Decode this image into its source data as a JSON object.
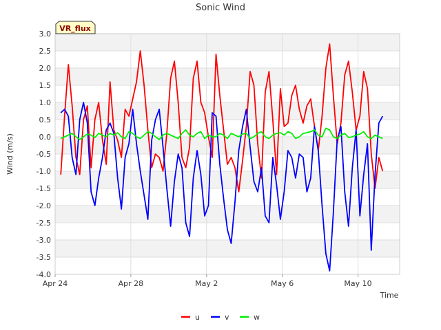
{
  "chart_data": {
    "type": "line",
    "title": "Sonic Wind",
    "xlabel": "Time",
    "ylabel": "Wind (m/s)",
    "badge": "VR_flux",
    "x_start": "Apr 24",
    "xlim_days": [
      0,
      18.2
    ],
    "ylim": [
      -4.0,
      3.0
    ],
    "y_ticks": [
      3.0,
      2.5,
      2.0,
      1.5,
      1.0,
      0.5,
      0.0,
      -0.5,
      -1.0,
      -1.5,
      -2.0,
      -2.5,
      -3.0,
      -3.5,
      -4.0
    ],
    "y_tick_labels": [
      "3.0",
      "2.5",
      "2.0",
      "1.5",
      "1.0",
      "0.5",
      "0.0",
      "-0.5",
      "-1.0",
      "-1.5",
      "-2.0",
      "-2.5",
      "-3.0",
      "-3.5",
      "-4.0"
    ],
    "x_ticks": [
      {
        "label": "Apr 24",
        "day": 0
      },
      {
        "label": "Apr 28",
        "day": 4
      },
      {
        "label": "May 2",
        "day": 8
      },
      {
        "label": "May 6",
        "day": 12
      },
      {
        "label": "May 10",
        "day": 16
      }
    ],
    "grid": true,
    "legend_position": "bottom-center",
    "series": [
      {
        "name": "u",
        "color": "#ff0000",
        "x": [
          0.3,
          0.5,
          0.7,
          0.9,
          1.1,
          1.3,
          1.5,
          1.7,
          1.9,
          2.1,
          2.3,
          2.5,
          2.7,
          2.9,
          3.1,
          3.3,
          3.5,
          3.7,
          3.9,
          4.1,
          4.3,
          4.5,
          4.7,
          4.9,
          5.1,
          5.3,
          5.5,
          5.7,
          5.9,
          6.1,
          6.3,
          6.5,
          6.7,
          6.9,
          7.1,
          7.3,
          7.5,
          7.7,
          7.9,
          8.1,
          8.3,
          8.5,
          8.7,
          8.9,
          9.1,
          9.3,
          9.5,
          9.7,
          9.9,
          10.1,
          10.3,
          10.5,
          10.7,
          10.9,
          11.1,
          11.3,
          11.5,
          11.7,
          11.9,
          12.1,
          12.3,
          12.5,
          12.7,
          12.9,
          13.1,
          13.3,
          13.5,
          13.7,
          13.9,
          14.1,
          14.3,
          14.5,
          14.7,
          14.9,
          15.1,
          15.3,
          15.5,
          15.7,
          15.9,
          16.1,
          16.3,
          16.5,
          16.7,
          16.9,
          17.1,
          17.3
        ],
        "y": [
          -1.1,
          0.6,
          2.1,
          0.9,
          -0.6,
          -1.1,
          0.5,
          0.9,
          -0.9,
          0.5,
          1.0,
          -0.1,
          -0.8,
          1.6,
          0.2,
          -0.1,
          -0.6,
          0.8,
          0.6,
          1.1,
          1.6,
          2.5,
          1.5,
          0.2,
          -0.9,
          -0.5,
          -0.6,
          -1.0,
          0.1,
          1.7,
          2.2,
          1.0,
          -0.6,
          -0.9,
          -0.3,
          1.7,
          2.2,
          1.0,
          0.7,
          0.0,
          -0.6,
          2.4,
          1.2,
          0.2,
          -0.8,
          -0.6,
          -0.9,
          -1.6,
          -0.7,
          0.3,
          1.9,
          1.5,
          -0.2,
          -1.2,
          1.3,
          1.9,
          0.5,
          -1.1,
          1.4,
          0.3,
          0.4,
          1.2,
          1.5,
          0.8,
          0.4,
          0.9,
          1.1,
          0.3,
          -0.4,
          0.6,
          2.0,
          2.7,
          1.2,
          -0.2,
          0.4,
          1.8,
          2.2,
          1.3,
          0.2,
          0.6,
          1.9,
          1.4,
          -0.5,
          -1.5,
          -0.6,
          -1.0
        ]
      },
      {
        "name": "v",
        "color": "#0000ff",
        "x": [
          0.3,
          0.5,
          0.7,
          0.9,
          1.1,
          1.3,
          1.5,
          1.7,
          1.9,
          2.1,
          2.3,
          2.5,
          2.7,
          2.9,
          3.1,
          3.3,
          3.5,
          3.7,
          3.9,
          4.1,
          4.3,
          4.5,
          4.7,
          4.9,
          5.1,
          5.3,
          5.5,
          5.7,
          5.9,
          6.1,
          6.3,
          6.5,
          6.7,
          6.9,
          7.1,
          7.3,
          7.5,
          7.7,
          7.9,
          8.1,
          8.3,
          8.5,
          8.7,
          8.9,
          9.1,
          9.3,
          9.5,
          9.7,
          9.9,
          10.1,
          10.3,
          10.5,
          10.7,
          10.9,
          11.1,
          11.3,
          11.5,
          11.7,
          11.9,
          12.1,
          12.3,
          12.5,
          12.7,
          12.9,
          13.1,
          13.3,
          13.5,
          13.7,
          13.9,
          14.1,
          14.3,
          14.5,
          14.7,
          14.9,
          15.1,
          15.3,
          15.5,
          15.7,
          15.9,
          16.1,
          16.3,
          16.5,
          16.7,
          16.9,
          17.1,
          17.3
        ],
        "y": [
          0.7,
          0.8,
          0.6,
          -0.6,
          -1.1,
          0.5,
          1.0,
          0.4,
          -1.6,
          -2.0,
          -1.2,
          -0.6,
          0.2,
          0.4,
          0.1,
          -1.2,
          -2.1,
          -0.6,
          -0.2,
          0.8,
          -0.2,
          -1.0,
          -1.7,
          -2.4,
          -0.1,
          0.5,
          0.8,
          -0.3,
          -1.5,
          -2.6,
          -1.3,
          -0.5,
          -0.9,
          -2.5,
          -2.9,
          -1.2,
          -0.4,
          -1.1,
          -2.3,
          -2.0,
          0.7,
          0.6,
          -0.8,
          -1.8,
          -2.7,
          -3.1,
          -1.9,
          -0.4,
          0.3,
          0.8,
          -0.3,
          -1.3,
          -1.6,
          -0.9,
          -2.3,
          -2.5,
          -0.6,
          -1.4,
          -2.4,
          -1.6,
          -0.4,
          -0.6,
          -1.2,
          -0.5,
          -0.6,
          -1.6,
          -1.2,
          0.3,
          -0.4,
          -2.0,
          -3.4,
          -3.9,
          -2.2,
          -0.1,
          0.3,
          -1.6,
          -2.6,
          -0.9,
          0.2,
          -2.3,
          -1.1,
          -0.2,
          -3.3,
          -1.1,
          0.4,
          0.6
        ]
      },
      {
        "name": "w",
        "color": "#00ee00",
        "x": [
          0.3,
          0.5,
          0.7,
          0.9,
          1.1,
          1.3,
          1.5,
          1.7,
          1.9,
          2.1,
          2.3,
          2.5,
          2.7,
          2.9,
          3.1,
          3.3,
          3.5,
          3.7,
          3.9,
          4.1,
          4.3,
          4.5,
          4.7,
          4.9,
          5.1,
          5.3,
          5.5,
          5.7,
          5.9,
          6.1,
          6.3,
          6.5,
          6.7,
          6.9,
          7.1,
          7.3,
          7.5,
          7.7,
          7.9,
          8.1,
          8.3,
          8.5,
          8.7,
          8.9,
          9.1,
          9.3,
          9.5,
          9.7,
          9.9,
          10.1,
          10.3,
          10.5,
          10.7,
          10.9,
          11.1,
          11.3,
          11.5,
          11.7,
          11.9,
          12.1,
          12.3,
          12.5,
          12.7,
          12.9,
          13.1,
          13.3,
          13.5,
          13.7,
          13.9,
          14.1,
          14.3,
          14.5,
          14.7,
          14.9,
          15.1,
          15.3,
          15.5,
          15.7,
          15.9,
          16.1,
          16.3,
          16.5,
          16.7,
          16.9,
          17.1,
          17.3
        ],
        "y": [
          -0.05,
          0.0,
          0.05,
          0.1,
          0.0,
          -0.08,
          0.0,
          0.08,
          0.05,
          -0.02,
          0.1,
          0.05,
          0.0,
          0.1,
          0.05,
          0.12,
          0.0,
          -0.05,
          0.15,
          0.1,
          0.0,
          -0.05,
          0.05,
          0.15,
          0.1,
          0.0,
          -0.08,
          0.05,
          0.1,
          0.05,
          0.0,
          -0.05,
          0.1,
          0.2,
          0.05,
          0.0,
          0.1,
          0.15,
          -0.05,
          0.05,
          0.0,
          0.0,
          0.1,
          0.05,
          -0.05,
          0.1,
          0.05,
          0.0,
          0.08,
          0.1,
          -0.05,
          0.0,
          0.1,
          0.15,
          0.0,
          -0.05,
          0.05,
          0.1,
          0.12,
          0.05,
          0.15,
          0.1,
          -0.05,
          0.0,
          0.1,
          0.12,
          0.15,
          0.2,
          0.05,
          0.0,
          0.25,
          0.2,
          0.0,
          -0.05,
          0.05,
          0.1,
          -0.02,
          0.0,
          0.05,
          0.08,
          0.15,
          0.0,
          -0.05,
          0.05,
          0.0,
          -0.05
        ]
      }
    ]
  }
}
